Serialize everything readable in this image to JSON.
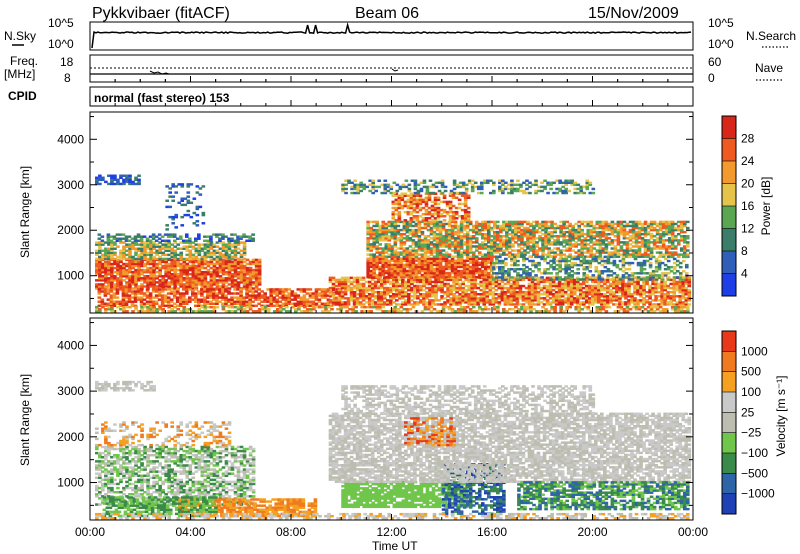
{
  "header": {
    "station": "Pykkvibaer (fitACF)",
    "beam": "Beam 06",
    "date": "15/Nov/2009"
  },
  "noise_panel": {
    "left_label": "N.Sky",
    "right_label": "N.Search",
    "left_ticks": [
      "10^5",
      "10^0"
    ],
    "right_ticks": [
      "10^5",
      "10^0"
    ]
  },
  "freq_panel": {
    "left_label_line1": "Freq.",
    "left_label_line2": "[MHz]",
    "right_label": "Nave",
    "left_ticks": [
      "18",
      "8"
    ],
    "right_ticks": [
      "60",
      "0"
    ]
  },
  "cpid": {
    "label": "CPID",
    "value": "normal (fast stereo) 153"
  },
  "chart_data": [
    {
      "type": "heatmap",
      "name": "power",
      "ylabel": "Slant Range [km]",
      "ylim": [
        180,
        4600
      ],
      "yticks": [
        "1000",
        "2000",
        "3000",
        "4000"
      ],
      "xlim_hours": [
        0,
        24
      ],
      "colorbar": {
        "title": "Power [dB]",
        "labels": [
          "4",
          "8",
          "12",
          "16",
          "20",
          "24",
          "28"
        ],
        "colors": [
          "#1f3fe6",
          "#2f5fb8",
          "#3a7e6a",
          "#5aa653",
          "#e6c34a",
          "#f29a2e",
          "#ee5a1f",
          "#d9261a"
        ]
      }
    },
    {
      "type": "heatmap",
      "name": "velocity",
      "ylabel": "Slant Range [km]",
      "ylim": [
        180,
        4600
      ],
      "yticks": [
        "1000",
        "2000",
        "3000",
        "4000"
      ],
      "xlabel": "Time UT",
      "xticks": [
        "00:00",
        "04:00",
        "08:00",
        "12:00",
        "16:00",
        "20:00",
        "00:00"
      ],
      "colorbar": {
        "title": "Velocity [m s⁻¹]",
        "labels": [
          "1000",
          "500",
          "100",
          "25",
          "−25",
          "−100",
          "−500",
          "−1000"
        ],
        "colors": [
          "#2041b5",
          "#2e64a8",
          "#3a8a4a",
          "#6fc64b",
          "#bdbdb0",
          "#c9c9c9",
          "#f5a020",
          "#f07a1f",
          "#e8391b"
        ]
      }
    }
  ]
}
